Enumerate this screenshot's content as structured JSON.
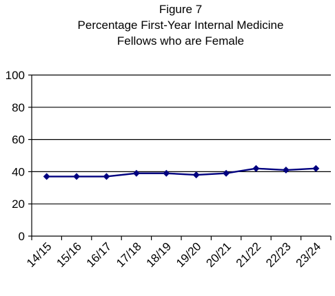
{
  "chart_data": {
    "type": "line",
    "title": [
      "Figure 7",
      "Percentage First-Year Internal Medicine",
      "Fellows who are Female"
    ],
    "xlabel": "",
    "ylabel": "",
    "categories": [
      "14/15",
      "15/16",
      "16/17",
      "17/18",
      "18/19",
      "19/20",
      "20/21",
      "21/22",
      "22/23",
      "23/24"
    ],
    "series": [
      {
        "values": [
          37,
          37,
          37,
          39,
          39,
          38,
          39,
          42,
          41,
          42
        ],
        "color": "#00007f"
      }
    ],
    "ylim": [
      0,
      100
    ],
    "yticks": [
      0,
      20,
      40,
      60,
      80,
      100
    ],
    "grid": true,
    "legend": "none"
  }
}
